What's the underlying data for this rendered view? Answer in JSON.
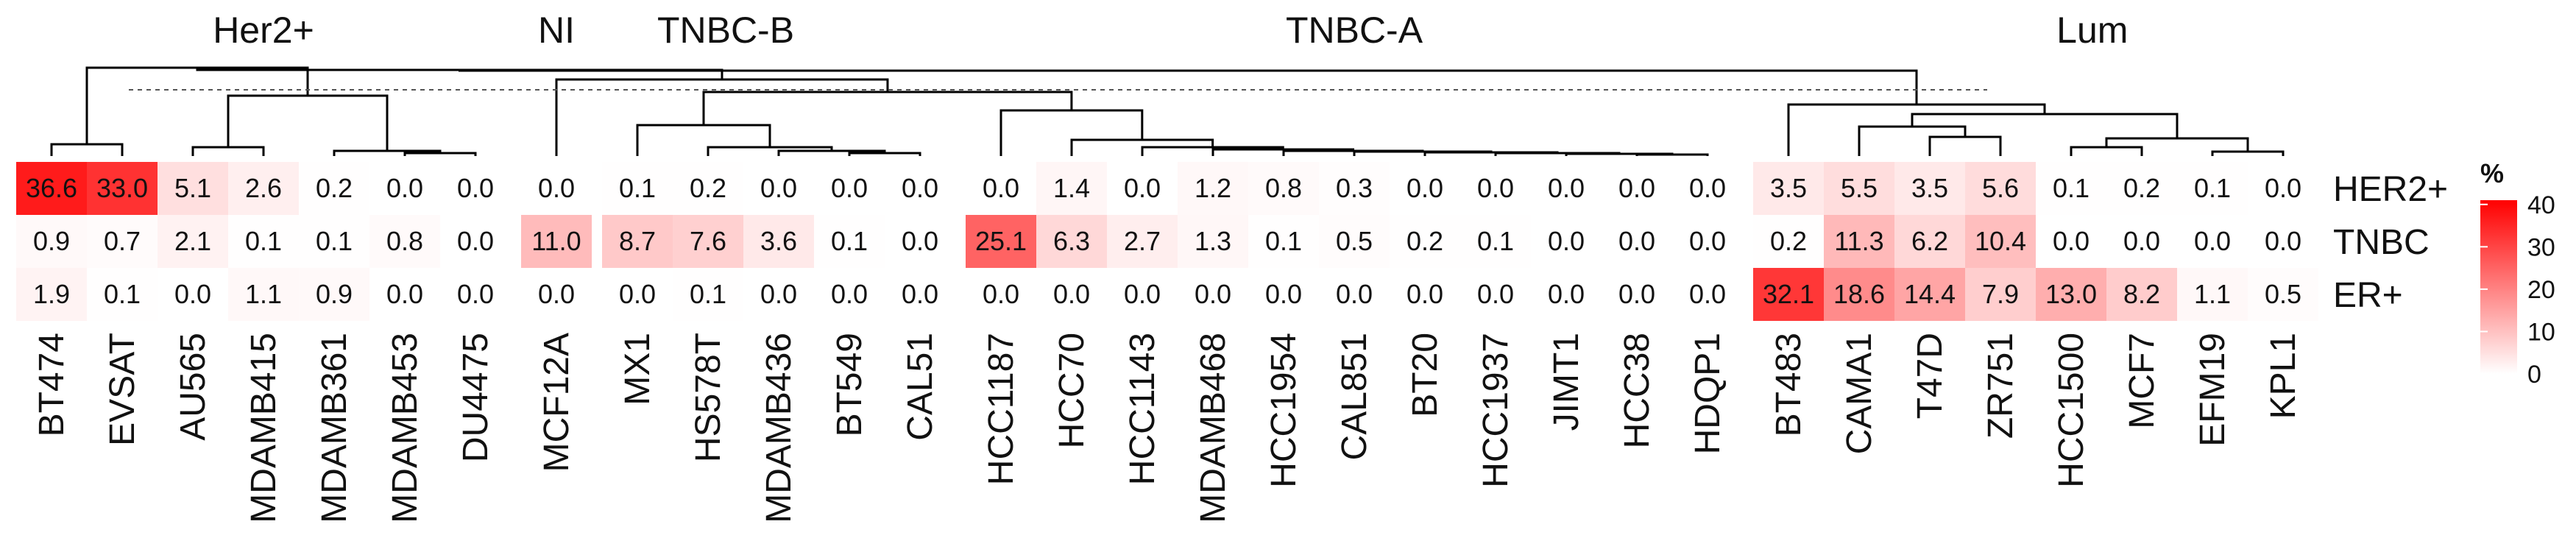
{
  "chart_data": {
    "type": "heatmap",
    "rows": [
      "HER2+",
      "TNBC",
      "ER+"
    ],
    "groups": [
      {
        "label": "Her2+",
        "columns": [
          "BT474",
          "EVSAT",
          "AU565",
          "MDAMB415",
          "MDAMB361",
          "MDAMB453",
          "DU4475"
        ]
      },
      {
        "label": "NI",
        "columns": [
          "MCF12A"
        ]
      },
      {
        "label": "TNBC-B",
        "columns": [
          "MX1",
          "HS578T",
          "MDAMB436",
          "BT549",
          "CAL51"
        ]
      },
      {
        "label": "TNBC-A",
        "columns": [
          "HCC1187",
          "HCC70",
          "HCC1143",
          "MDAMB468",
          "HCC1954",
          "CAL851",
          "BT20",
          "HCC1937",
          "JIMT1",
          "HCC38",
          "HDQP1"
        ]
      },
      {
        "label": "Lum",
        "columns": [
          "BT483",
          "CAMA1",
          "T47D",
          "ZR751",
          "HCC1500",
          "MCF7",
          "EFM19",
          "KPL1"
        ]
      }
    ],
    "values": [
      [
        36.6,
        33.0,
        5.1,
        2.6,
        0.2,
        0.0,
        0.0,
        0.0,
        0.1,
        0.2,
        0.0,
        0.0,
        0.0,
        0.0,
        1.4,
        0.0,
        1.2,
        0.8,
        0.3,
        0.0,
        0.0,
        0.0,
        0.0,
        0.0,
        3.5,
        5.5,
        3.5,
        5.6,
        0.1,
        0.2,
        0.1,
        0.0
      ],
      [
        0.9,
        0.7,
        2.1,
        0.1,
        0.1,
        0.8,
        0.0,
        11.0,
        8.7,
        7.6,
        3.6,
        0.1,
        0.0,
        25.1,
        6.3,
        2.7,
        1.3,
        0.1,
        0.5,
        0.2,
        0.1,
        0.0,
        0.0,
        0.0,
        0.2,
        11.3,
        6.2,
        10.4,
        0.0,
        0.0,
        0.0,
        0.0
      ],
      [
        1.9,
        0.1,
        0.0,
        1.1,
        0.9,
        0.0,
        0.0,
        0.0,
        0.0,
        0.1,
        0.0,
        0.0,
        0.0,
        0.0,
        0.0,
        0.0,
        0.0,
        0.0,
        0.0,
        0.0,
        0.0,
        0.0,
        0.0,
        0.0,
        32.1,
        18.6,
        14.4,
        7.9,
        13.0,
        8.2,
        1.1,
        0.5
      ]
    ],
    "value_labels": [
      [
        "36.6",
        "33.0",
        "5.1",
        "2.6",
        "0.2",
        "0.0",
        "0.0",
        "0.0",
        "0.1",
        "0.2",
        "0.0",
        "0.0",
        "0.0",
        "0.0",
        "1.4",
        "0.0",
        "1.2",
        "0.8",
        "0.3",
        "0.0",
        "0.0",
        "0.0",
        "0.0",
        "0.0",
        "3.5",
        "5.5",
        "3.5",
        "5.6",
        "0.1",
        "0.2",
        "0.1",
        "0.0"
      ],
      [
        "0.9",
        "0.7",
        "2.1",
        "0.1",
        "0.1",
        "0.8",
        "0.0",
        "11.0",
        "8.7",
        "7.6",
        "3.6",
        "0.1",
        "0.0",
        "25.1",
        "6.3",
        "2.7",
        "1.3",
        "0.1",
        "0.5",
        "0.2",
        "0.1",
        "0.0",
        "0.0",
        "0.0",
        "0.2",
        "11.3",
        "6.2",
        "10.4",
        "0.0",
        "0.0",
        "0.0",
        "0.0"
      ],
      [
        "1.9",
        "0.1",
        "0.0",
        "1.1",
        "0.9",
        "0.0",
        "0.0",
        "0.0",
        "0.0",
        "0.1",
        "0.0",
        "0.0",
        "0.0",
        "0.0",
        "0.0",
        "0.0",
        "0.0",
        "0.0",
        "0.0",
        "0.0",
        "0.0",
        "0.0",
        "0.0",
        "0.0",
        "32.1",
        "18.6",
        "14.4",
        "7.9",
        "13.0",
        "8.2",
        "1.1",
        "0.5"
      ]
    ],
    "legend": {
      "title": "%",
      "ticks": [
        "0",
        "10",
        "20",
        "30",
        "40"
      ],
      "tick_values": [
        0,
        10,
        20,
        30,
        40
      ],
      "range": [
        0,
        41
      ],
      "color_low": "#ffffff",
      "color_high": "#ff0000",
      "placement": "right"
    }
  }
}
